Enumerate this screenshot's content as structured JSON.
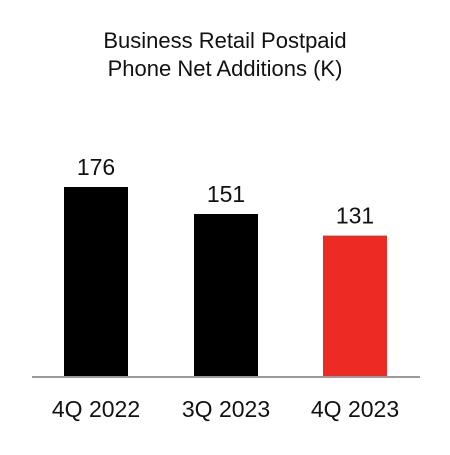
{
  "chart_data": {
    "type": "bar",
    "title_lines": [
      "Business Retail Postpaid",
      "Phone Net Additions (K)"
    ],
    "categories": [
      "4Q 2022",
      "3Q 2023",
      "4Q 2023"
    ],
    "values": [
      176,
      151,
      131
    ],
    "bar_colors": [
      "#000000",
      "#000000",
      "#ee2a24"
    ],
    "axis_color": "#9a9a9a",
    "ylim": [
      0,
      200
    ],
    "grid": false,
    "legend": "none",
    "xlabel": "",
    "ylabel": ""
  }
}
